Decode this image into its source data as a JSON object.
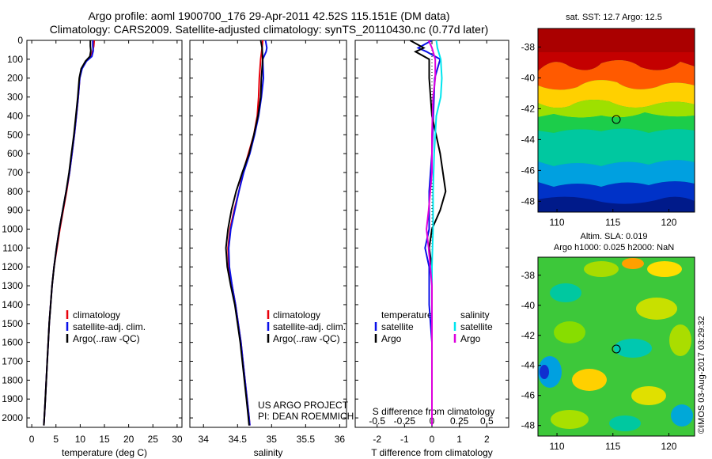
{
  "titles": {
    "line1": "Argo profile: aoml 1900700_176 29-Apr-2011 42.52S 115.151E (DM data)",
    "line2": "Climatology: CARS2009. Satellite-adjusted climatology: synTS_20110430.nc (0.77d later)"
  },
  "colors": {
    "climatology": "#e8000b",
    "satellite": "#0a10e8",
    "argo": "#000000",
    "satellite_s": "#00e5ee",
    "argo_s": "#dd00dd"
  },
  "chart_data": [
    {
      "type": "line",
      "name": "temperature",
      "xlabel": "temperature (deg C)",
      "ylabel": "",
      "xlim": [
        -1,
        31
      ],
      "ylim": [
        2050,
        0
      ],
      "xticks": [
        0,
        5,
        10,
        15,
        20,
        25,
        30
      ],
      "yticks": [
        0,
        100,
        200,
        300,
        400,
        500,
        600,
        700,
        800,
        900,
        1000,
        1100,
        1200,
        1300,
        1400,
        1500,
        1600,
        1700,
        1800,
        1900,
        2000
      ],
      "legend": [
        "climatology",
        "satellite-adj. clim.",
        "Argo(..raw -QC)"
      ],
      "series": [
        {
          "name": "climatology",
          "color": "climatology",
          "points": [
            [
              12.9,
              0
            ],
            [
              12.8,
              30
            ],
            [
              12.6,
              55
            ],
            [
              12.2,
              85
            ],
            [
              11.2,
              110
            ],
            [
              10.3,
              150
            ],
            [
              9.9,
              200
            ],
            [
              9.6,
              300
            ],
            [
              9.2,
              400
            ],
            [
              8.8,
              500
            ],
            [
              8.3,
              600
            ],
            [
              7.8,
              700
            ],
            [
              7.2,
              800
            ],
            [
              6.5,
              900
            ],
            [
              5.8,
              1000
            ],
            [
              5.2,
              1100
            ],
            [
              4.6,
              1200
            ],
            [
              4.2,
              1300
            ],
            [
              3.9,
              1400
            ],
            [
              3.6,
              1500
            ],
            [
              3.4,
              1600
            ],
            [
              3.2,
              1700
            ],
            [
              3.0,
              1800
            ],
            [
              2.8,
              1900
            ],
            [
              2.6,
              2000
            ],
            [
              2.5,
              2040
            ]
          ]
        },
        {
          "name": "satellite-adj. clim.",
          "color": "satellite",
          "points": [
            [
              12.6,
              0
            ],
            [
              12.6,
              30
            ],
            [
              12.7,
              55
            ],
            [
              12.4,
              85
            ],
            [
              11.3,
              110
            ],
            [
              10.4,
              150
            ],
            [
              9.9,
              200
            ],
            [
              9.6,
              300
            ],
            [
              9.2,
              400
            ],
            [
              8.8,
              500
            ],
            [
              8.3,
              600
            ],
            [
              7.8,
              700
            ],
            [
              7.1,
              800
            ],
            [
              6.4,
              900
            ],
            [
              5.7,
              1000
            ],
            [
              5.1,
              1100
            ],
            [
              4.6,
              1200
            ],
            [
              4.2,
              1300
            ],
            [
              3.9,
              1400
            ],
            [
              3.6,
              1500
            ],
            [
              3.4,
              1600
            ],
            [
              3.2,
              1700
            ],
            [
              3.0,
              1800
            ],
            [
              2.8,
              1900
            ],
            [
              2.6,
              2000
            ],
            [
              2.5,
              2040
            ]
          ]
        },
        {
          "name": "Argo(..raw -QC)",
          "color": "argo",
          "points": [
            [
              12.1,
              0
            ],
            [
              12.1,
              30
            ],
            [
              12.2,
              55
            ],
            [
              12.0,
              85
            ],
            [
              11.1,
              110
            ],
            [
              10.2,
              150
            ],
            [
              9.8,
              200
            ],
            [
              9.5,
              300
            ],
            [
              9.1,
              400
            ],
            [
              8.7,
              500
            ],
            [
              8.2,
              600
            ],
            [
              7.7,
              700
            ],
            [
              7.1,
              800
            ],
            [
              6.4,
              900
            ],
            [
              5.7,
              1000
            ],
            [
              5.1,
              1100
            ],
            [
              4.6,
              1200
            ],
            [
              4.2,
              1300
            ],
            [
              3.9,
              1400
            ],
            [
              3.6,
              1500
            ],
            [
              3.4,
              1600
            ],
            [
              3.2,
              1700
            ],
            [
              3.0,
              1800
            ],
            [
              2.8,
              1900
            ],
            [
              2.6,
              2000
            ],
            [
              2.5,
              2040
            ]
          ]
        }
      ]
    },
    {
      "type": "line",
      "name": "salinity",
      "xlabel": "salinity",
      "xlim": [
        33.8,
        36.1
      ],
      "ylim": [
        2050,
        0
      ],
      "xticks": [
        34,
        34.5,
        35,
        35.5,
        36
      ],
      "xticklabels": [
        "34",
        "34.5",
        "35",
        "35.5",
        "36"
      ],
      "legend": [
        "climatology",
        "satellite-adj. clim.",
        "Argo(..raw -QC)"
      ],
      "annotation": [
        "US ARGO PROJECT",
        "PI: DEAN ROEMMICH"
      ],
      "series": [
        {
          "name": "climatology",
          "color": "climatology",
          "points": [
            [
              34.87,
              0
            ],
            [
              34.86,
              40
            ],
            [
              34.84,
              100
            ],
            [
              34.82,
              200
            ],
            [
              34.81,
              300
            ],
            [
              34.79,
              400
            ],
            [
              34.74,
              500
            ],
            [
              34.66,
              600
            ],
            [
              34.58,
              700
            ],
            [
              34.52,
              800
            ],
            [
              34.45,
              900
            ],
            [
              34.39,
              1000
            ],
            [
              34.36,
              1100
            ],
            [
              34.37,
              1200
            ],
            [
              34.42,
              1300
            ],
            [
              34.47,
              1400
            ],
            [
              34.51,
              1500
            ],
            [
              34.55,
              1600
            ],
            [
              34.58,
              1700
            ],
            [
              34.61,
              1800
            ],
            [
              34.64,
              1900
            ],
            [
              34.67,
              2000
            ],
            [
              34.68,
              2040
            ]
          ]
        },
        {
          "name": "satellite-adj. clim.",
          "color": "satellite",
          "points": [
            [
              34.91,
              0
            ],
            [
              34.93,
              40
            ],
            [
              34.92,
              60
            ],
            [
              34.87,
              100
            ],
            [
              34.88,
              200
            ],
            [
              34.85,
              300
            ],
            [
              34.81,
              400
            ],
            [
              34.75,
              500
            ],
            [
              34.68,
              600
            ],
            [
              34.59,
              700
            ],
            [
              34.52,
              800
            ],
            [
              34.46,
              900
            ],
            [
              34.4,
              1000
            ],
            [
              34.37,
              1100
            ],
            [
              34.38,
              1200
            ],
            [
              34.42,
              1300
            ],
            [
              34.47,
              1400
            ],
            [
              34.51,
              1500
            ],
            [
              34.55,
              1600
            ],
            [
              34.58,
              1700
            ],
            [
              34.61,
              1800
            ],
            [
              34.64,
              1900
            ],
            [
              34.67,
              2000
            ],
            [
              34.68,
              2040
            ]
          ]
        },
        {
          "name": "Argo(..raw -QC)",
          "color": "argo",
          "points": [
            [
              34.84,
              0
            ],
            [
              34.86,
              40
            ],
            [
              34.87,
              100
            ],
            [
              34.85,
              200
            ],
            [
              34.84,
              300
            ],
            [
              34.8,
              400
            ],
            [
              34.74,
              500
            ],
            [
              34.67,
              600
            ],
            [
              34.57,
              700
            ],
            [
              34.48,
              800
            ],
            [
              34.41,
              900
            ],
            [
              34.36,
              1000
            ],
            [
              34.33,
              1100
            ],
            [
              34.35,
              1200
            ],
            [
              34.4,
              1300
            ],
            [
              34.46,
              1400
            ],
            [
              34.5,
              1500
            ],
            [
              34.54,
              1600
            ],
            [
              34.57,
              1700
            ],
            [
              34.6,
              1800
            ],
            [
              34.63,
              1900
            ],
            [
              34.66,
              2000
            ],
            [
              34.67,
              2040
            ]
          ]
        }
      ]
    },
    {
      "type": "line",
      "name": "difference from climatology",
      "xlabel": "T difference from climatology",
      "xlabel_top": "S difference from climatology",
      "xlim": [
        -2.8,
        2.8
      ],
      "ylim": [
        2050,
        0
      ],
      "xticks": [
        -2,
        -1,
        0,
        1,
        2
      ],
      "s_xticks": [
        -0.5,
        -0.25,
        0,
        0.25,
        0.5
      ],
      "legend_t_title": "temperature",
      "legend_s_title": "salinity",
      "legend_t": [
        "satellite",
        "Argo"
      ],
      "legend_s": [
        "satellite",
        "Argo"
      ],
      "series": [
        {
          "name": "T satellite",
          "color": "satellite",
          "points": [
            [
              0.0,
              0
            ],
            [
              -0.5,
              40
            ],
            [
              -0.2,
              60
            ],
            [
              0.3,
              100
            ],
            [
              0.1,
              200
            ],
            [
              0.05,
              400
            ],
            [
              0.0,
              600
            ],
            [
              -0.1,
              800
            ],
            [
              -0.1,
              1000
            ],
            [
              -0.25,
              1100
            ],
            [
              -0.1,
              1200
            ],
            [
              -0.1,
              1400
            ],
            [
              0.0,
              1600
            ],
            [
              0.0,
              1800
            ],
            [
              0.0,
              2040
            ]
          ]
        },
        {
          "name": "T Argo",
          "color": "argo",
          "points": [
            [
              -0.8,
              0
            ],
            [
              -0.3,
              40
            ],
            [
              -0.6,
              60
            ],
            [
              -0.1,
              100
            ],
            [
              -0.1,
              200
            ],
            [
              0.0,
              400
            ],
            [
              0.3,
              600
            ],
            [
              0.5,
              800
            ],
            [
              0.3,
              900
            ],
            [
              0.0,
              1000
            ],
            [
              -0.1,
              1100
            ],
            [
              0.0,
              1200
            ],
            [
              0.0,
              1400
            ],
            [
              0.0,
              1600
            ],
            [
              0.0,
              1800
            ],
            [
              0.0,
              2040
            ]
          ]
        },
        {
          "name": "S satellite",
          "color": "satellite_s",
          "points": [
            [
              0.04,
              0
            ],
            [
              0.05,
              40
            ],
            [
              0.08,
              100
            ],
            [
              0.09,
              200
            ],
            [
              0.08,
              300
            ],
            [
              0.04,
              400
            ],
            [
              0.03,
              500
            ],
            [
              0.02,
              600
            ],
            [
              0.01,
              800
            ],
            [
              0.01,
              1000
            ],
            [
              0.0,
              1200
            ],
            [
              0.0,
              1400
            ],
            [
              0.0,
              1600
            ],
            [
              0.0,
              1800
            ],
            [
              0.0,
              2040
            ]
          ]
        },
        {
          "name": "S Argo",
          "color": "argo_s",
          "points": [
            [
              -0.03,
              0
            ],
            [
              0.0,
              40
            ],
            [
              0.03,
              100
            ],
            [
              0.03,
              200
            ],
            [
              0.01,
              300
            ],
            [
              0.0,
              500
            ],
            [
              0.0,
              700
            ],
            [
              -0.03,
              900
            ],
            [
              -0.05,
              1000
            ],
            [
              -0.03,
              1100
            ],
            [
              0.0,
              1300
            ],
            [
              0.0,
              1500
            ],
            [
              0.0,
              1700
            ],
            [
              0.0,
              1900
            ],
            [
              0.0,
              2040
            ]
          ]
        }
      ]
    },
    {
      "type": "heatmap",
      "name": "sat-sst-map",
      "title": "sat. SST: 12.7  Argo: 12.5",
      "xlim": [
        108.3,
        122.3
      ],
      "ylim": [
        -48.7,
        -36.8
      ],
      "xticks": [
        110,
        115,
        120
      ],
      "yticks": [
        -38,
        -40,
        -42,
        -44,
        -46,
        -48
      ],
      "marker": [
        115.151,
        -42.52
      ]
    },
    {
      "type": "heatmap",
      "name": "altim-sla-map",
      "title": [
        "Altim. SLA: 0.019",
        "Argo h1000: 0.025 h2000: NaN"
      ],
      "xlim": [
        108.3,
        122.3
      ],
      "ylim": [
        -48.7,
        -36.8
      ],
      "xticks": [
        110,
        115,
        120
      ],
      "yticks": [
        -38,
        -40,
        -42,
        -44,
        -46,
        -48
      ],
      "marker": [
        115.151,
        -42.52
      ]
    }
  ],
  "credit": "©IMOS 03-Aug-2017 03:29:32"
}
